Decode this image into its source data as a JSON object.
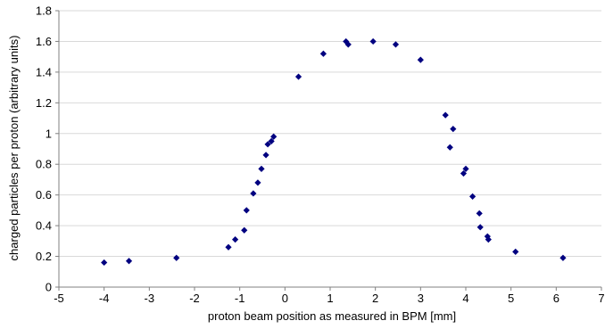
{
  "chart_data": {
    "type": "scatter",
    "title": "",
    "xlabel": "proton beam position as measured in BPM [mm]",
    "ylabel": "charged particles per proton (arbitrary units)",
    "xlim": [
      -5,
      7
    ],
    "ylim": [
      0,
      1.8
    ],
    "x_ticks": [
      -5,
      -4,
      -3,
      -2,
      -1,
      0,
      1,
      2,
      3,
      4,
      5,
      6,
      7
    ],
    "y_ticks": [
      0,
      0.2,
      0.4,
      0.6,
      0.8,
      1,
      1.2,
      1.4,
      1.6,
      1.8
    ],
    "x_tick_labels": [
      "-5",
      "-4",
      "-3",
      "-2",
      "-1",
      "0",
      "1",
      "2",
      "3",
      "4",
      "5",
      "6",
      "7"
    ],
    "y_tick_labels": [
      "0",
      "0.2",
      "0.4",
      "0.6",
      "0.8",
      "1",
      "1.2",
      "1.4",
      "1.6",
      "1.8"
    ],
    "grid": "horizontal",
    "legend": "none",
    "marker": "diamond",
    "marker_color": "#000080",
    "series": [
      {
        "points": [
          [
            -4.0,
            0.16
          ],
          [
            -3.45,
            0.17
          ],
          [
            -2.4,
            0.19
          ],
          [
            -1.25,
            0.26
          ],
          [
            -1.1,
            0.31
          ],
          [
            -0.9,
            0.37
          ],
          [
            -0.85,
            0.5
          ],
          [
            -0.7,
            0.61
          ],
          [
            -0.6,
            0.68
          ],
          [
            -0.52,
            0.77
          ],
          [
            -0.42,
            0.86
          ],
          [
            -0.38,
            0.93
          ],
          [
            -0.3,
            0.95
          ],
          [
            -0.25,
            0.98
          ],
          [
            0.3,
            1.37
          ],
          [
            0.85,
            1.52
          ],
          [
            1.35,
            1.6
          ],
          [
            1.4,
            1.58
          ],
          [
            1.95,
            1.6
          ],
          [
            2.45,
            1.58
          ],
          [
            3.0,
            1.48
          ],
          [
            3.55,
            1.12
          ],
          [
            3.65,
            0.91
          ],
          [
            3.72,
            1.03
          ],
          [
            3.95,
            0.74
          ],
          [
            4.0,
            0.77
          ],
          [
            4.15,
            0.59
          ],
          [
            4.3,
            0.48
          ],
          [
            4.32,
            0.39
          ],
          [
            4.48,
            0.33
          ],
          [
            4.5,
            0.31
          ],
          [
            5.1,
            0.23
          ],
          [
            6.15,
            0.19
          ]
        ]
      }
    ]
  }
}
